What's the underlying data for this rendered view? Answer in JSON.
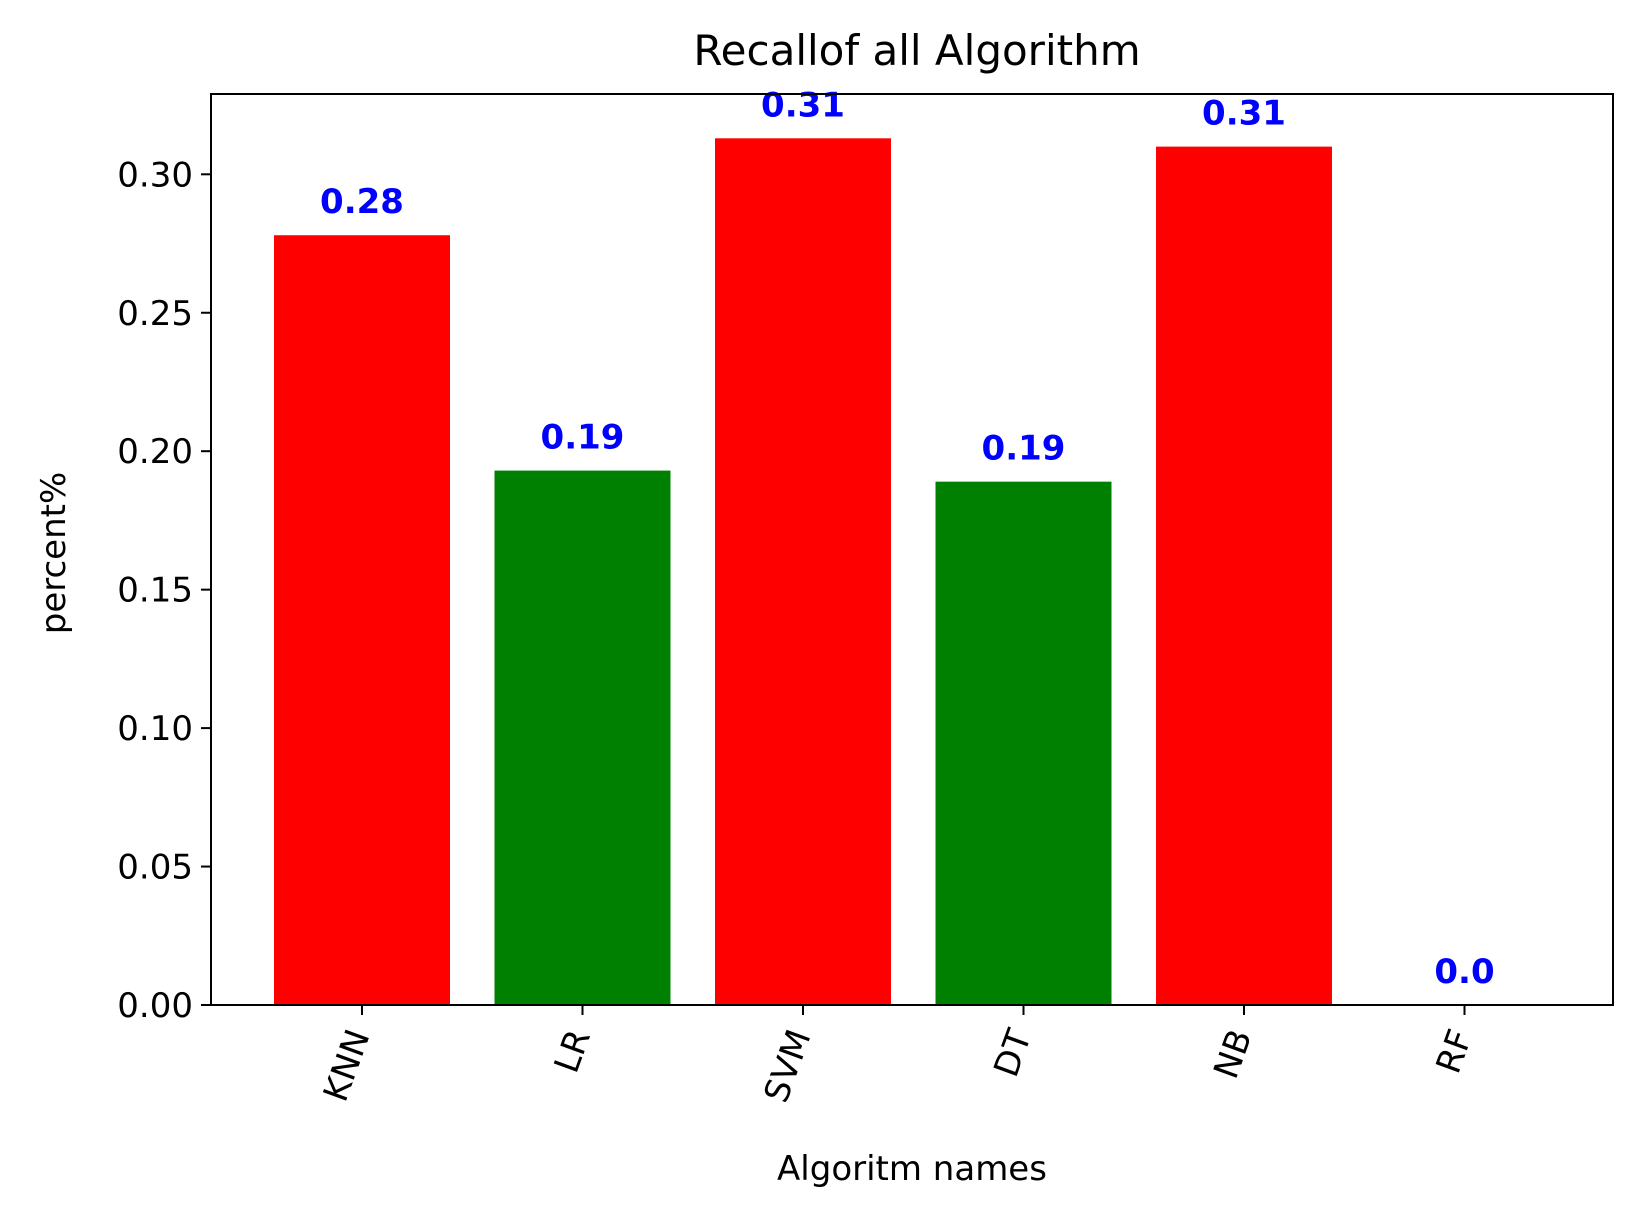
{
  "chart_data": {
    "type": "bar",
    "title": "Recallof all Algorithm",
    "xlabel": "Algoritm names",
    "ylabel": "percent%",
    "categories": [
      "KNN",
      "LR",
      "SVM",
      "DT",
      "NB",
      "RF"
    ],
    "values": [
      0.278,
      0.193,
      0.313,
      0.189,
      0.31,
      0.0
    ],
    "data_labels": [
      "0.28",
      "0.19",
      "0.31",
      "0.19",
      "0.31",
      "0.0"
    ],
    "bar_colors": [
      "#ff0000",
      "#008000",
      "#ff0000",
      "#008000",
      "#ff0000",
      "#008000"
    ],
    "data_label_color": "#0000ff",
    "ylim": [
      0,
      0.329
    ],
    "yticks": [
      0.0,
      0.05,
      0.1,
      0.15,
      0.2,
      0.25,
      0.3
    ],
    "ytick_labels": [
      "0.00",
      "0.05",
      "0.10",
      "0.15",
      "0.20",
      "0.25",
      "0.30"
    ],
    "grid": false,
    "legend": false
  }
}
